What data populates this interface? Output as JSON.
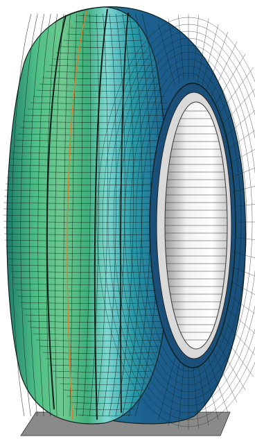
{
  "scene": {
    "subject": "tire-fe-mesh",
    "colors": {
      "background": "#ffffff",
      "mesh_line": "#0d1f1a",
      "tread_light": "#6ec98f",
      "tread_mid": "#3fae7a",
      "tread_dark": "#1f7d6c",
      "sidewall_teal": "#2a9aa8",
      "sidewall_blue": "#1c5f8e",
      "highlight_cyan": "#7fd8d2",
      "groove_orange": "#e07b2a",
      "rim_light": "#f2f2f2",
      "rim_shadow": "#9a9a9a",
      "ground_plane": "#8a8a8a"
    }
  }
}
